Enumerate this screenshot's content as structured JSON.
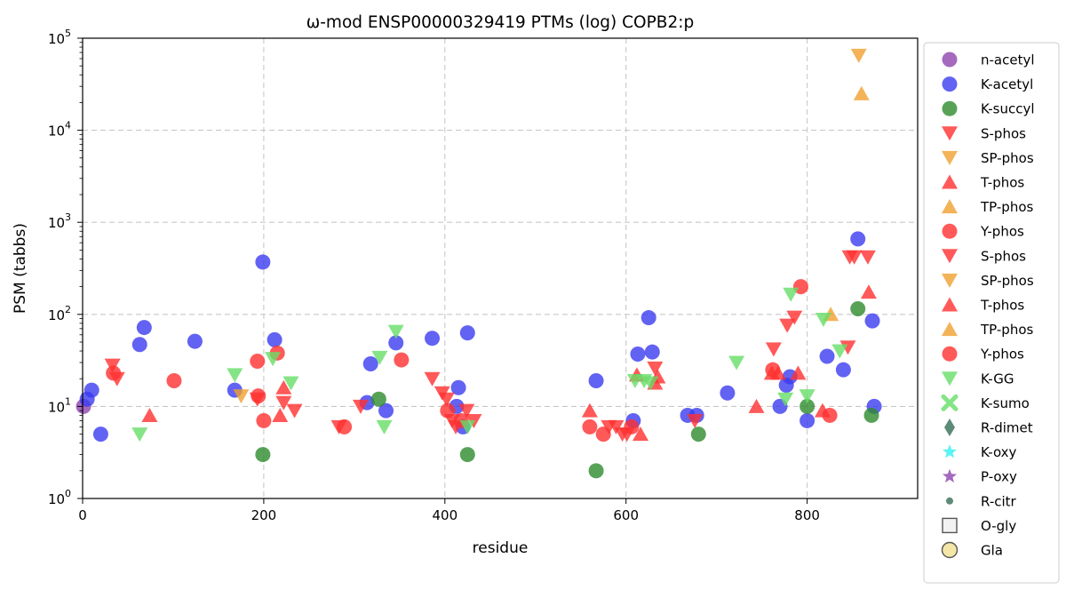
{
  "chart_data": {
    "type": "scatter",
    "title": "ω-mod ENSP00000329419 PTMs (log) COPB2:p",
    "xlabel": "residue",
    "ylabel": "PSM (tabbs)",
    "xlim": [
      0,
      922
    ],
    "ylim": [
      1,
      100000
    ],
    "yscale": "log",
    "grid": true,
    "legend_position": "outside-right",
    "x_ticks": [
      {
        "value": 0,
        "label": "0"
      },
      {
        "value": 200,
        "label": "200"
      },
      {
        "value": 400,
        "label": "400"
      },
      {
        "value": 600,
        "label": "600"
      },
      {
        "value": 800,
        "label": "800"
      }
    ],
    "y_ticks": [
      {
        "value": 1,
        "base": "10",
        "exp": "0"
      },
      {
        "value": 10,
        "base": "10",
        "exp": "1"
      },
      {
        "value": 100,
        "base": "10",
        "exp": "2"
      },
      {
        "value": 1000,
        "base": "10",
        "exp": "3"
      },
      {
        "value": 10000,
        "base": "10",
        "exp": "4"
      },
      {
        "value": 100000,
        "base": "10",
        "exp": "5"
      }
    ],
    "series": [
      {
        "name": "n-acetyl",
        "marker": "circle",
        "color": "#8e44ad",
        "points": [
          [
            1,
            10
          ]
        ]
      },
      {
        "name": "K-acetyl",
        "marker": "circle",
        "color": "#3b3bf0",
        "points": [
          [
            5,
            12
          ],
          [
            10,
            15
          ],
          [
            20,
            5
          ],
          [
            63,
            47
          ],
          [
            68,
            72
          ],
          [
            124,
            51
          ],
          [
            168,
            15
          ],
          [
            199,
            370
          ],
          [
            212,
            53
          ],
          [
            314,
            11
          ],
          [
            318,
            29
          ],
          [
            335,
            9
          ],
          [
            346,
            49
          ],
          [
            386,
            55
          ],
          [
            413,
            10
          ],
          [
            415,
            16
          ],
          [
            420,
            6
          ],
          [
            425,
            63
          ],
          [
            567,
            19
          ],
          [
            608,
            7
          ],
          [
            613,
            37
          ],
          [
            625,
            92
          ],
          [
            629,
            39
          ],
          [
            668,
            8
          ],
          [
            678,
            8
          ],
          [
            712,
            14
          ],
          [
            770,
            10
          ],
          [
            777,
            17
          ],
          [
            781,
            21
          ],
          [
            800,
            7
          ],
          [
            822,
            35
          ],
          [
            840,
            25
          ],
          [
            856,
            660
          ],
          [
            872,
            85
          ],
          [
            874,
            10
          ]
        ]
      },
      {
        "name": "K-succyl",
        "marker": "circle",
        "color": "#2e8b2e",
        "points": [
          [
            199,
            3
          ],
          [
            327,
            12
          ],
          [
            425,
            3
          ],
          [
            567,
            2
          ],
          [
            680,
            5
          ],
          [
            800,
            10
          ],
          [
            856,
            115
          ],
          [
            871,
            8
          ]
        ]
      },
      {
        "name": "S-phos",
        "marker": "triangle-down",
        "color": "#ff3030",
        "points": [
          [
            33,
            28
          ],
          [
            38,
            20
          ],
          [
            193,
            12
          ],
          [
            222,
            11
          ],
          [
            234,
            9
          ],
          [
            283,
            6
          ],
          [
            307,
            10
          ],
          [
            386,
            20
          ],
          [
            397,
            14
          ],
          [
            402,
            12
          ],
          [
            408,
            7
          ],
          [
            412,
            6
          ],
          [
            424,
            9
          ],
          [
            432,
            7
          ],
          [
            581,
            6
          ],
          [
            589,
            6
          ],
          [
            596,
            5
          ],
          [
            601,
            5
          ],
          [
            632,
            26
          ],
          [
            676,
            7
          ],
          [
            763,
            42
          ],
          [
            778,
            76
          ],
          [
            786,
            93
          ],
          [
            845,
            44
          ],
          [
            847,
            420
          ],
          [
            852,
            420
          ],
          [
            867,
            420
          ]
        ]
      },
      {
        "name": "SP-phos",
        "marker": "triangle-down",
        "color": "#f0a030",
        "points": [
          [
            175,
            13
          ],
          [
            857,
            65000
          ]
        ]
      },
      {
        "name": "T-phos",
        "marker": "triangle-up",
        "color": "#ff3030",
        "points": [
          [
            74,
            8
          ],
          [
            218,
            8
          ],
          [
            222,
            16
          ],
          [
            560,
            9
          ],
          [
            612,
            22
          ],
          [
            616,
            5
          ],
          [
            632,
            18
          ],
          [
            635,
            21
          ],
          [
            744,
            10
          ],
          [
            761,
            23
          ],
          [
            768,
            23
          ],
          [
            790,
            23
          ],
          [
            817,
            9
          ],
          [
            868,
            175
          ]
        ]
      },
      {
        "name": "TP-phos",
        "marker": "triangle-up",
        "color": "#f0a030",
        "points": [
          [
            826,
            100
          ],
          [
            860,
            25000
          ]
        ]
      },
      {
        "name": "Y-phos",
        "marker": "circle",
        "color": "#ff3030",
        "points": [
          [
            34,
            23
          ],
          [
            101,
            19
          ],
          [
            193,
            31
          ],
          [
            194,
            13
          ],
          [
            200,
            7
          ],
          [
            215,
            38
          ],
          [
            289,
            6
          ],
          [
            352,
            32
          ],
          [
            403,
            9
          ],
          [
            418,
            7
          ],
          [
            560,
            6
          ],
          [
            575,
            5
          ],
          [
            606,
            6
          ],
          [
            762,
            25
          ],
          [
            793,
            200
          ],
          [
            825,
            8
          ]
        ]
      },
      {
        "name": "S-phos",
        "marker": "triangle-down",
        "color": "#ff3030",
        "points": []
      },
      {
        "name": "SP-phos",
        "marker": "triangle-down",
        "color": "#f0a030",
        "points": []
      },
      {
        "name": "T-phos",
        "marker": "triangle-up",
        "color": "#ff3030",
        "points": []
      },
      {
        "name": "TP-phos",
        "marker": "triangle-up",
        "color": "#f0a030",
        "points": []
      },
      {
        "name": "Y-phos",
        "marker": "circle",
        "color": "#ff3030",
        "points": []
      },
      {
        "name": "K-GG",
        "marker": "triangle-down",
        "color": "#66dd66",
        "points": [
          [
            63,
            5
          ],
          [
            168,
            22
          ],
          [
            210,
            33
          ],
          [
            230,
            18
          ],
          [
            328,
            34
          ],
          [
            333,
            6
          ],
          [
            346,
            65
          ],
          [
            425,
            6
          ],
          [
            610,
            19
          ],
          [
            620,
            19
          ],
          [
            627,
            18
          ],
          [
            722,
            30
          ],
          [
            776,
            12
          ],
          [
            782,
            165
          ],
          [
            818,
            88
          ],
          [
            836,
            40
          ],
          [
            800,
            13
          ]
        ]
      },
      {
        "name": "K-sumo",
        "marker": "x",
        "color": "#66dd66",
        "points": []
      },
      {
        "name": "R-dimet",
        "marker": "diamond",
        "color": "#336e55",
        "points": []
      },
      {
        "name": "K-oxy",
        "marker": "star",
        "color": "#33f0f0",
        "points": []
      },
      {
        "name": "P-oxy",
        "marker": "star",
        "color": "#8e44ad",
        "points": []
      },
      {
        "name": "R-citr",
        "marker": "small-circle",
        "color": "#336e55",
        "points": []
      },
      {
        "name": "O-gly",
        "marker": "square-open",
        "color": "#f2f2f2",
        "points": []
      },
      {
        "name": "Gla",
        "marker": "circle-open",
        "color": "#f3e6a6",
        "points": []
      }
    ]
  }
}
